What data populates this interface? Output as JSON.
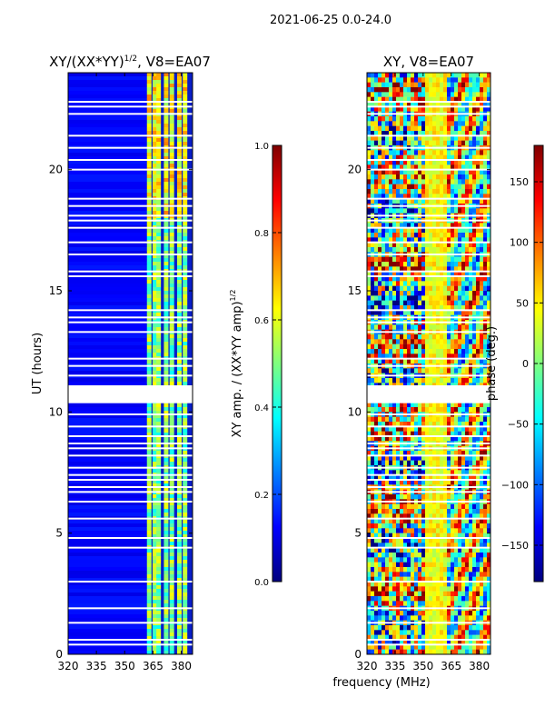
{
  "figure_title": "2021-06-25 0.0-24.0",
  "shared_xlabel": "frequency (MHz)",
  "chart_data": [
    {
      "type": "heatmap",
      "title_main": "XY/(XX*YY)",
      "title_sup": "1/2",
      "title_suffix": ", V8=EA07",
      "ylabel": "UT (hours)",
      "xlim": [
        320,
        386
      ],
      "ylim": [
        0,
        24
      ],
      "x_ticks": [
        320,
        335,
        350,
        365,
        380
      ],
      "y_ticks": [
        0,
        5,
        10,
        15,
        20
      ],
      "bright_channels_mhz": [
        363,
        366,
        368,
        372,
        375,
        379,
        382
      ],
      "blank_rows_ut": [
        0.4,
        0.6,
        1.3,
        1.9,
        3.0,
        4.4,
        4.8,
        5.6,
        6.3,
        6.7,
        6.9,
        7.2,
        7.4,
        7.7,
        8.2,
        8.5,
        8.7,
        9.0,
        9.4,
        9.9,
        10.4,
        10.6,
        10.8,
        11.0,
        11.5,
        11.9,
        12.2,
        13.3,
        13.7,
        13.9,
        14.2,
        15.6,
        15.8,
        16.5,
        17.0,
        17.6,
        17.9,
        18.1,
        18.5,
        18.8,
        20.0,
        20.4,
        20.9,
        21.4,
        22.3,
        22.6,
        22.8
      ],
      "colorbar": {
        "label_main": "XY amp. / (XX*YY amp)",
        "label_sup": "1/2",
        "range": [
          0.0,
          1.0
        ],
        "ticks": [
          "0.0",
          "0.2",
          "0.4",
          "0.6",
          "0.8",
          "1.0"
        ]
      }
    },
    {
      "type": "heatmap",
      "title": "XY, V8=EA07",
      "xlim": [
        320,
        386
      ],
      "ylim": [
        0,
        24
      ],
      "x_ticks": [
        320,
        335,
        350,
        365,
        380
      ],
      "y_ticks": [
        0,
        5,
        10,
        15,
        20
      ],
      "blank_rows_ut": [
        0.4,
        0.6,
        1.3,
        1.9,
        3.0,
        4.4,
        4.8,
        5.6,
        6.3,
        6.7,
        6.9,
        7.2,
        7.4,
        7.7,
        8.2,
        8.5,
        8.7,
        9.0,
        9.4,
        9.9,
        10.4,
        10.6,
        10.8,
        11.0,
        11.5,
        11.9,
        12.2,
        13.3,
        13.7,
        13.9,
        14.2,
        15.6,
        15.8,
        16.5,
        17.0,
        17.6,
        17.9,
        18.1,
        18.5,
        18.8,
        20.0,
        20.4,
        20.9,
        21.4,
        22.3,
        22.6,
        22.8
      ],
      "colorbar": {
        "label": "phase (deg.)",
        "range": [
          -180,
          180
        ],
        "ticks": [
          "150",
          "100",
          "50",
          "0",
          "−50",
          "−100",
          "−150"
        ],
        "tick_values": [
          150,
          100,
          50,
          0,
          -50,
          -100,
          -150
        ]
      }
    }
  ]
}
